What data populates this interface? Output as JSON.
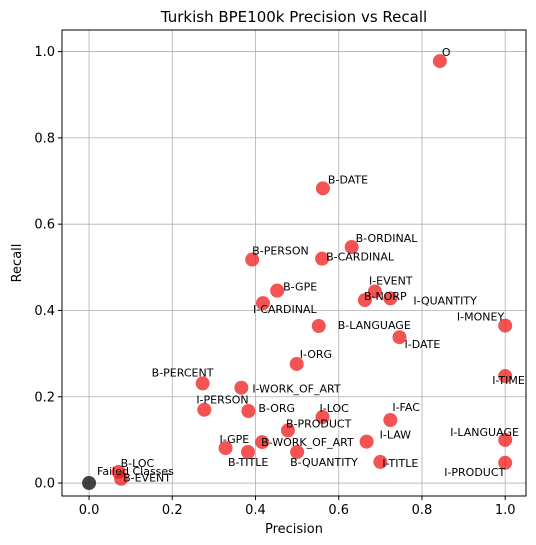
{
  "chart_data": {
    "type": "scatter",
    "title": "Turkish BPE100k Precision vs Recall",
    "xlabel": "Precision",
    "ylabel": "Recall",
    "xlim": [
      -0.065,
      1.05
    ],
    "ylim": [
      -0.03,
      1.05
    ],
    "xticks": [
      "0.0",
      "0.2",
      "0.4",
      "0.6",
      "0.8",
      "1.0"
    ],
    "yticks": [
      "0.0",
      "0.2",
      "0.4",
      "0.6",
      "0.8",
      "1.0"
    ],
    "grid": true,
    "colors": {
      "class_point": "#ee1111",
      "failed_point": "#222222"
    },
    "points": [
      {
        "label": "O",
        "x": 0.843,
        "y": 0.978
      },
      {
        "label": "B-DATE",
        "x": 0.562,
        "y": 0.683
      },
      {
        "label": "B-ORDINAL",
        "x": 0.631,
        "y": 0.547
      },
      {
        "label": "B-PERSON",
        "x": 0.392,
        "y": 0.518
      },
      {
        "label": "B-CARDINAL",
        "x": 0.56,
        "y": 0.52
      },
      {
        "label": "I-EVENT",
        "x": 0.687,
        "y": 0.444
      },
      {
        "label": "B-NORP",
        "x": 0.663,
        "y": 0.424
      },
      {
        "label": "I-QUANTITY",
        "x": 0.724,
        "y": 0.428
      },
      {
        "label": "B-GPE",
        "x": 0.452,
        "y": 0.446
      },
      {
        "label": "I-CARDINAL",
        "x": 0.418,
        "y": 0.417
      },
      {
        "label": "I-MONEY",
        "x": 1.0,
        "y": 0.365
      },
      {
        "label": "B-LANGUAGE",
        "x": 0.552,
        "y": 0.364
      },
      {
        "label": "I-DATE",
        "x": 0.746,
        "y": 0.338
      },
      {
        "label": "I-ORG",
        "x": 0.499,
        "y": 0.276
      },
      {
        "label": "B-PERCENT",
        "x": 0.273,
        "y": 0.231
      },
      {
        "label": "I-WORK_OF_ART",
        "x": 0.366,
        "y": 0.221
      },
      {
        "label": "I-TIME",
        "x": 1.0,
        "y": 0.248
      },
      {
        "label": "I-PERSON",
        "x": 0.277,
        "y": 0.17
      },
      {
        "label": "B-ORG",
        "x": 0.383,
        "y": 0.167
      },
      {
        "label": "I-LOC",
        "x": 0.561,
        "y": 0.153
      },
      {
        "label": "I-FAC",
        "x": 0.724,
        "y": 0.146
      },
      {
        "label": "B-PRODUCT",
        "x": 0.478,
        "y": 0.122
      },
      {
        "label": "I-LAW",
        "x": 0.667,
        "y": 0.096
      },
      {
        "label": "I-LANGUAGE",
        "x": 1.0,
        "y": 0.1
      },
      {
        "label": "I-GPE",
        "x": 0.328,
        "y": 0.081
      },
      {
        "label": "B-WORK_OF_ART",
        "x": 0.416,
        "y": 0.095
      },
      {
        "label": "B-TITLE",
        "x": 0.382,
        "y": 0.072
      },
      {
        "label": "B-QUANTITY",
        "x": 0.5,
        "y": 0.072
      },
      {
        "label": "I-TITLE",
        "x": 0.7,
        "y": 0.049
      },
      {
        "label": "I-PRODUCT",
        "x": 1.0,
        "y": 0.047
      },
      {
        "label": "B-LOC",
        "x": 0.071,
        "y": 0.026
      },
      {
        "label": "B-EVENT",
        "x": 0.077,
        "y": 0.01
      }
    ],
    "failed": {
      "label": "Failed Classes",
      "x": 0.0,
      "y": 0.0
    }
  }
}
